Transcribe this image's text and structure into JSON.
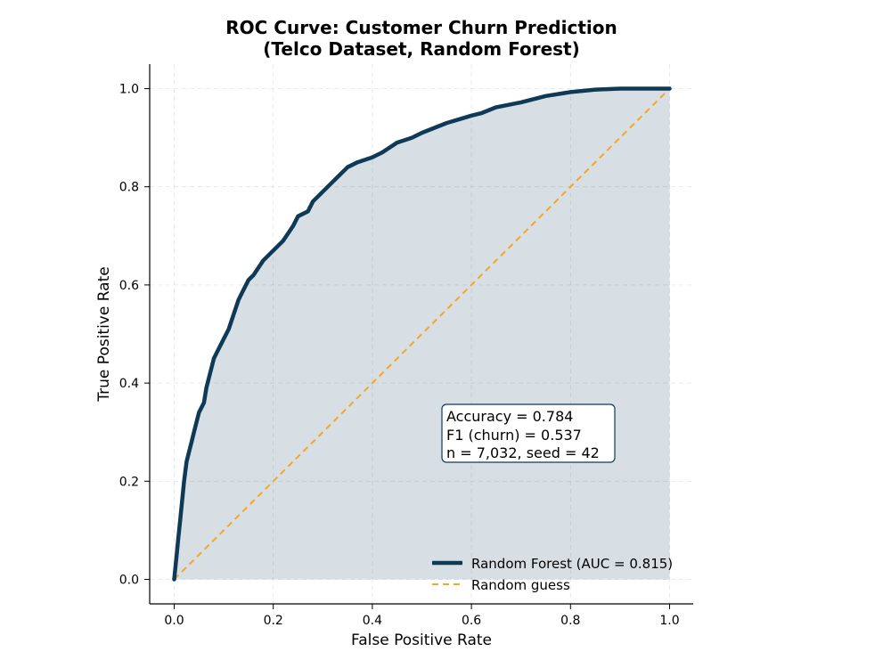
{
  "chart_data": {
    "type": "line",
    "title": "ROC Curve: Customer Churn Prediction",
    "subtitle": "(Telco Dataset, Random Forest)",
    "xlabel": "False Positive Rate",
    "ylabel": "True Positive Rate",
    "xlim": [
      -0.05,
      1.05
    ],
    "ylim": [
      -0.05,
      1.05
    ],
    "xticks": [
      "0.0",
      "0.2",
      "0.4",
      "0.6",
      "0.8",
      "1.0"
    ],
    "yticks": [
      "0.0",
      "0.2",
      "0.4",
      "0.6",
      "0.8",
      "1.0"
    ],
    "grid": true,
    "legend_position": "lower-right",
    "series": [
      {
        "name": "Random Forest (AUC = 0.815)",
        "color": "#0e3a57",
        "style": "solid",
        "filled": true,
        "x": [
          0.0,
          0.002,
          0.005,
          0.008,
          0.012,
          0.016,
          0.02,
          0.025,
          0.03,
          0.035,
          0.04,
          0.05,
          0.06,
          0.065,
          0.07,
          0.075,
          0.08,
          0.09,
          0.1,
          0.11,
          0.12,
          0.13,
          0.14,
          0.15,
          0.16,
          0.18,
          0.2,
          0.22,
          0.24,
          0.25,
          0.27,
          0.28,
          0.3,
          0.32,
          0.35,
          0.37,
          0.4,
          0.42,
          0.45,
          0.48,
          0.5,
          0.55,
          0.6,
          0.62,
          0.65,
          0.7,
          0.75,
          0.8,
          0.85,
          0.9,
          0.95,
          1.0
        ],
        "y": [
          0.0,
          0.02,
          0.05,
          0.08,
          0.12,
          0.16,
          0.2,
          0.24,
          0.26,
          0.28,
          0.3,
          0.34,
          0.36,
          0.39,
          0.41,
          0.43,
          0.45,
          0.47,
          0.49,
          0.51,
          0.54,
          0.57,
          0.59,
          0.61,
          0.62,
          0.65,
          0.67,
          0.69,
          0.72,
          0.74,
          0.75,
          0.77,
          0.79,
          0.81,
          0.84,
          0.85,
          0.86,
          0.87,
          0.89,
          0.9,
          0.91,
          0.93,
          0.945,
          0.95,
          0.962,
          0.972,
          0.985,
          0.993,
          0.998,
          1.0,
          1.0,
          1.0
        ]
      },
      {
        "name": "Random guess",
        "color": "#f5a623",
        "style": "dashed",
        "x": [
          0.0,
          1.0
        ],
        "y": [
          0.0,
          1.0
        ]
      }
    ],
    "annotation": {
      "lines": [
        "Accuracy = 0.784",
        "F1 (churn) = 0.537",
        "n = 7,032, seed = 42"
      ]
    }
  }
}
